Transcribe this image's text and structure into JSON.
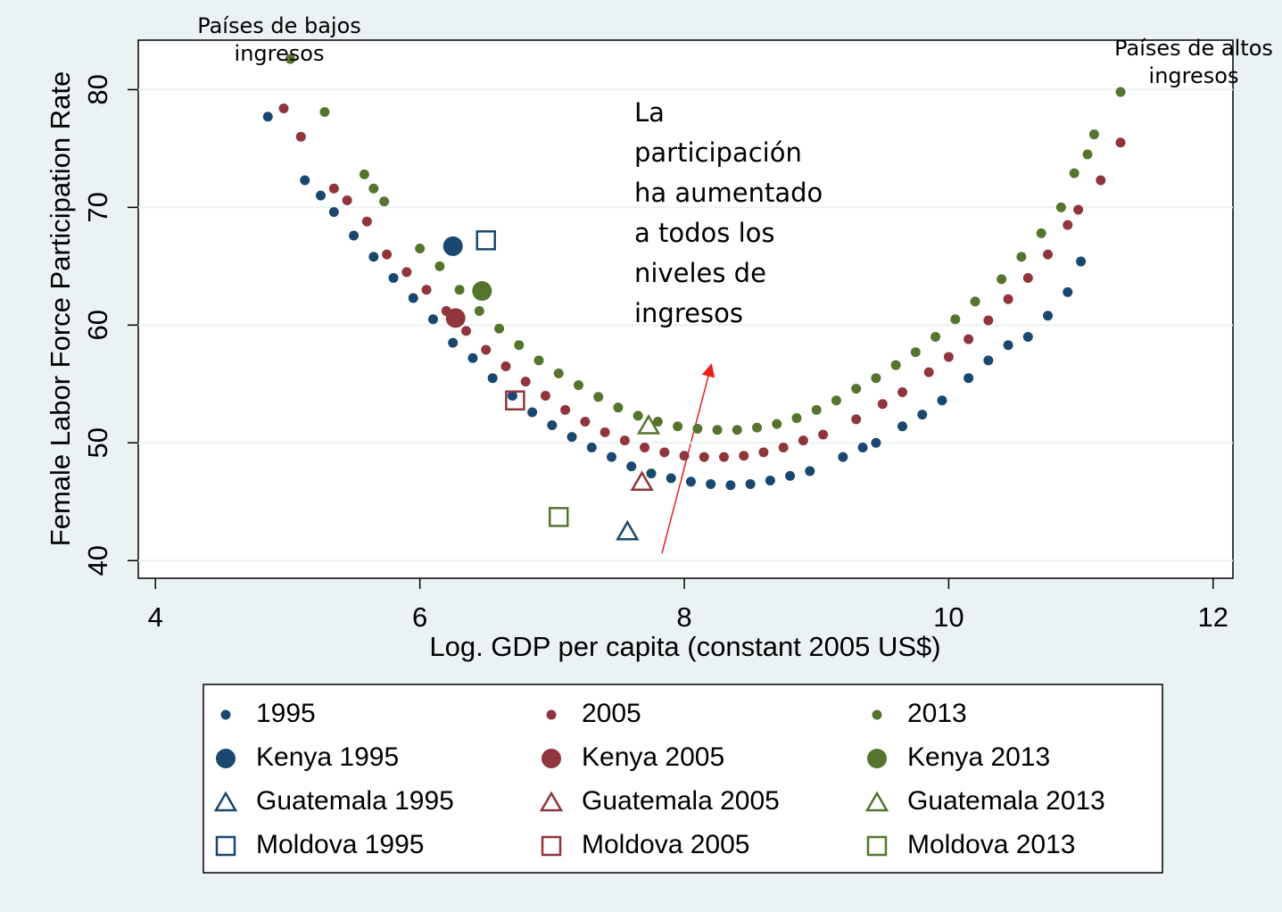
{
  "chart_data": {
    "type": "scatter",
    "xlabel": "Log. GDP per capita (constant 2005 US$)",
    "ylabel": "Female Labor Force Participation Rate",
    "xlim": [
      3.87,
      12.15
    ],
    "ylim": [
      38.5,
      84.2
    ],
    "xticks": [
      4,
      6,
      8,
      10,
      12
    ],
    "yticks": [
      40,
      50,
      60,
      70,
      80
    ],
    "grid": true,
    "annotations": [
      [
        "Países de bajos",
        "ingresos"
      ],
      [
        "Países de altos",
        "ingresos"
      ],
      [
        "La",
        "participación",
        "ha aumentado",
        "a todos los",
        "niveles de",
        "ingresos"
      ]
    ],
    "series": [
      {
        "name": "1995",
        "color": "#1a476f",
        "marker": "dot",
        "x": [
          4.85,
          5.13,
          5.25,
          5.35,
          5.5,
          5.65,
          5.8,
          5.95,
          6.1,
          6.25,
          6.4,
          6.55,
          6.7,
          6.85,
          7.0,
          7.15,
          7.3,
          7.45,
          7.6,
          7.75,
          7.9,
          8.05,
          8.2,
          8.35,
          8.5,
          8.65,
          8.8,
          8.95,
          9.2,
          9.35,
          9.45,
          9.65,
          9.8,
          9.95,
          10.15,
          10.3,
          10.45,
          10.6,
          10.75,
          10.9,
          11.0
        ],
        "values": [
          77.7,
          72.3,
          71,
          69.6,
          67.6,
          65.8,
          64,
          62.3,
          60.5,
          58.5,
          57.2,
          55.5,
          54,
          52.6,
          51.5,
          50.5,
          49.6,
          48.8,
          48,
          47.4,
          47,
          46.7,
          46.5,
          46.4,
          46.5,
          46.8,
          47.2,
          47.6,
          48.8,
          49.6,
          50,
          51.4,
          52.4,
          53.6,
          55.5,
          57,
          58.3,
          59,
          60.8,
          62.8,
          65.4
        ]
      },
      {
        "name": "2005",
        "color": "#90353b",
        "marker": "dot",
        "x": [
          4.97,
          5.1,
          5.35,
          5.45,
          5.6,
          5.75,
          5.9,
          6.05,
          6.2,
          6.35,
          6.5,
          6.65,
          6.8,
          6.95,
          7.1,
          7.25,
          7.4,
          7.55,
          7.7,
          7.85,
          8.0,
          8.15,
          8.3,
          8.45,
          8.6,
          8.75,
          8.9,
          9.05,
          9.3,
          9.5,
          9.65,
          9.85,
          10.0,
          10.15,
          10.3,
          10.45,
          10.6,
          10.75,
          10.9,
          10.98,
          11.15,
          11.3
        ],
        "values": [
          78.4,
          76,
          71.6,
          70.6,
          68.8,
          66,
          64.5,
          63,
          61.2,
          59.5,
          57.9,
          56.5,
          55.2,
          54,
          52.8,
          51.8,
          50.9,
          50.2,
          49.6,
          49.2,
          48.9,
          48.8,
          48.8,
          48.9,
          49.2,
          49.6,
          50.2,
          50.7,
          52,
          53.3,
          54.3,
          56,
          57.3,
          58.8,
          60.4,
          62.2,
          64,
          66,
          68.5,
          69.8,
          72.3,
          75.5
        ]
      },
      {
        "name": "2013",
        "color": "#55752f",
        "marker": "dot",
        "x": [
          5.02,
          5.28,
          5.58,
          5.65,
          5.73,
          6.0,
          6.15,
          6.3,
          6.45,
          6.6,
          6.75,
          6.9,
          7.05,
          7.2,
          7.35,
          7.5,
          7.65,
          7.8,
          7.95,
          8.1,
          8.25,
          8.4,
          8.55,
          8.7,
          8.85,
          9.0,
          9.15,
          9.3,
          9.45,
          9.6,
          9.75,
          9.9,
          10.05,
          10.2,
          10.4,
          10.55,
          10.7,
          10.85,
          10.95,
          11.05,
          11.1,
          11.3
        ],
        "values": [
          82.6,
          78.1,
          72.8,
          71.6,
          70.5,
          66.5,
          65,
          63,
          61.2,
          59.7,
          58.3,
          57,
          55.9,
          54.9,
          53.9,
          53,
          52.3,
          51.8,
          51.4,
          51.2,
          51.1,
          51.1,
          51.3,
          51.6,
          52.1,
          52.8,
          53.6,
          54.6,
          55.5,
          56.6,
          57.7,
          59,
          60.5,
          62,
          63.9,
          65.8,
          67.8,
          70,
          72.9,
          74.5,
          76.2,
          79.8
        ]
      },
      {
        "name": "Kenya 1995",
        "color": "#1a476f",
        "marker": "circle",
        "x": [
          6.25
        ],
        "values": [
          66.7
        ]
      },
      {
        "name": "Kenya 2005",
        "color": "#90353b",
        "marker": "circle",
        "x": [
          6.27
        ],
        "values": [
          60.6
        ]
      },
      {
        "name": "Kenya 2013",
        "color": "#55752f",
        "marker": "circle",
        "x": [
          6.47
        ],
        "values": [
          62.9
        ]
      },
      {
        "name": "Guatemala 1995",
        "color": "#1a476f",
        "marker": "triangle",
        "x": [
          7.57
        ],
        "values": [
          42.5
        ]
      },
      {
        "name": "Guatemala 2005",
        "color": "#90353b",
        "marker": "triangle",
        "x": [
          7.68
        ],
        "values": [
          46.7
        ]
      },
      {
        "name": "Guatemala 2013",
        "color": "#55752f",
        "marker": "triangle",
        "x": [
          7.73
        ],
        "values": [
          51.5
        ]
      },
      {
        "name": "Moldova 1995",
        "color": "#1a476f",
        "marker": "square",
        "x": [
          6.5
        ],
        "values": [
          67.2
        ]
      },
      {
        "name": "Moldova 2005",
        "color": "#90353b",
        "marker": "square",
        "x": [
          6.72
        ],
        "values": [
          53.6
        ]
      },
      {
        "name": "Moldova 2013",
        "color": "#55752f",
        "marker": "square",
        "x": [
          7.05
        ],
        "values": [
          43.7
        ]
      }
    ]
  }
}
